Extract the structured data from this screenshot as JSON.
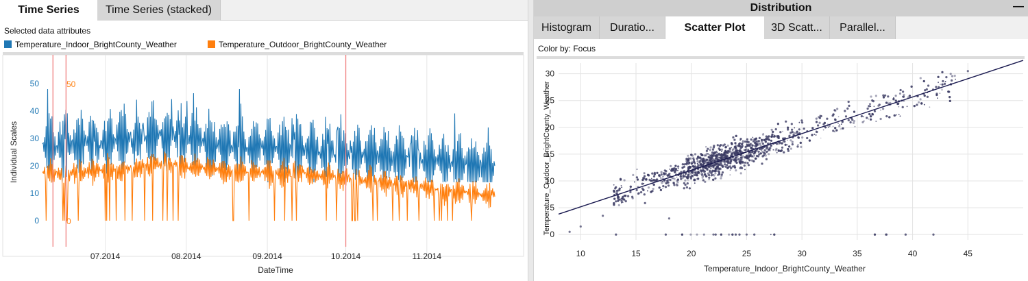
{
  "left": {
    "tabs": [
      {
        "label": "Time Series",
        "active": true
      },
      {
        "label": "Time Series (stacked)",
        "active": false
      }
    ],
    "selected_label": "Selected data attributes",
    "legend": [
      {
        "label": "Temperature_Indoor_BrightCounty_Weather",
        "color": "#1f77b4"
      },
      {
        "label": "Temperature_Outdoor_BrightCounty_Weather",
        "color": "#ff7f0e"
      }
    ]
  },
  "right": {
    "header": "Distribution",
    "minimize": "—",
    "tabs": [
      {
        "label": "Histogram",
        "active": false
      },
      {
        "label": "Duratio...",
        "active": false
      },
      {
        "label": "Scatter Plot",
        "active": true
      },
      {
        "label": "3D Scatt...",
        "active": false
      },
      {
        "label": "Parallel...",
        "active": false
      }
    ],
    "color_by": "Color by: Focus"
  },
  "chart_data": [
    {
      "type": "line",
      "title": "",
      "xlabel": "DateTime",
      "ylabel": "Individual Scales",
      "x_range": [
        "2014-06-07",
        "2014-11-27"
      ],
      "x_ticks": [
        "07.2014",
        "08.2014",
        "09.2014",
        "10.2014",
        "11.2014"
      ],
      "y_ticks_blue": [
        "0",
        "10",
        "20",
        "30",
        "40",
        "50"
      ],
      "y_ticks_orange": [
        "0",
        "50"
      ],
      "ylim_blue": [
        0,
        50
      ],
      "ylim_orange": [
        0,
        50
      ],
      "vertical_markers": [
        "2014-06-11",
        "2014-06-16",
        "2014-10-01"
      ],
      "marker_color": "#f08080",
      "series": [
        {
          "name": "Temperature_Indoor_BrightCounty_Weather",
          "color": "#1f77b4",
          "trend": [
            [
              "2014-06-07",
              27
            ],
            [
              "2014-07-01",
              29
            ],
            [
              "2014-07-25",
              31
            ],
            [
              "2014-08-15",
              27
            ],
            [
              "2014-09-15",
              26
            ],
            [
              "2014-10-10",
              24
            ],
            [
              "2014-11-01",
              22
            ],
            [
              "2014-11-27",
              19
            ]
          ],
          "range_min": 14,
          "range_max": 48
        },
        {
          "name": "Temperature_Outdoor_BrightCounty_Weather",
          "color": "#ff7f0e",
          "trend": [
            [
              "2014-06-07",
              17
            ],
            [
              "2014-07-01",
              18
            ],
            [
              "2014-07-25",
              21
            ],
            [
              "2014-08-15",
              18
            ],
            [
              "2014-09-15",
              17
            ],
            [
              "2014-10-10",
              15
            ],
            [
              "2014-11-01",
              12
            ],
            [
              "2014-11-27",
              9
            ]
          ],
          "range_min": 0,
          "range_max": 27
        }
      ]
    },
    {
      "type": "scatter",
      "title": "",
      "xlabel": "Temperature_Indoor_BrightCounty_Weather",
      "ylabel": "Temperature_Outdoor_BrightCounty_Weather",
      "xlim": [
        8,
        50
      ],
      "ylim": [
        -1,
        32
      ],
      "x_ticks": [
        "10",
        "15",
        "20",
        "25",
        "30",
        "35",
        "40",
        "45"
      ],
      "y_ticks": [
        "0",
        "5",
        "10",
        "15",
        "20",
        "25",
        "30"
      ],
      "point_color": "#3c3c64",
      "trendline": {
        "x": [
          8,
          50
        ],
        "y": [
          3.8,
          32.5
        ],
        "color": "#1a1a50"
      },
      "bulk": {
        "x_from": 13,
        "x_to": 44,
        "slope": 0.68,
        "intercept": -1.5,
        "spread": 2.3
      },
      "sample_points": [
        {
          "x": 9,
          "y": 0.5
        },
        {
          "x": 10,
          "y": 1.5
        },
        {
          "x": 12,
          "y": 3.5
        },
        {
          "x": 18,
          "y": 3
        },
        {
          "x": 22,
          "y": 0
        },
        {
          "x": 25,
          "y": 0
        },
        {
          "x": 33,
          "y": 21.5
        },
        {
          "x": 45,
          "y": 30.5
        }
      ]
    }
  ]
}
